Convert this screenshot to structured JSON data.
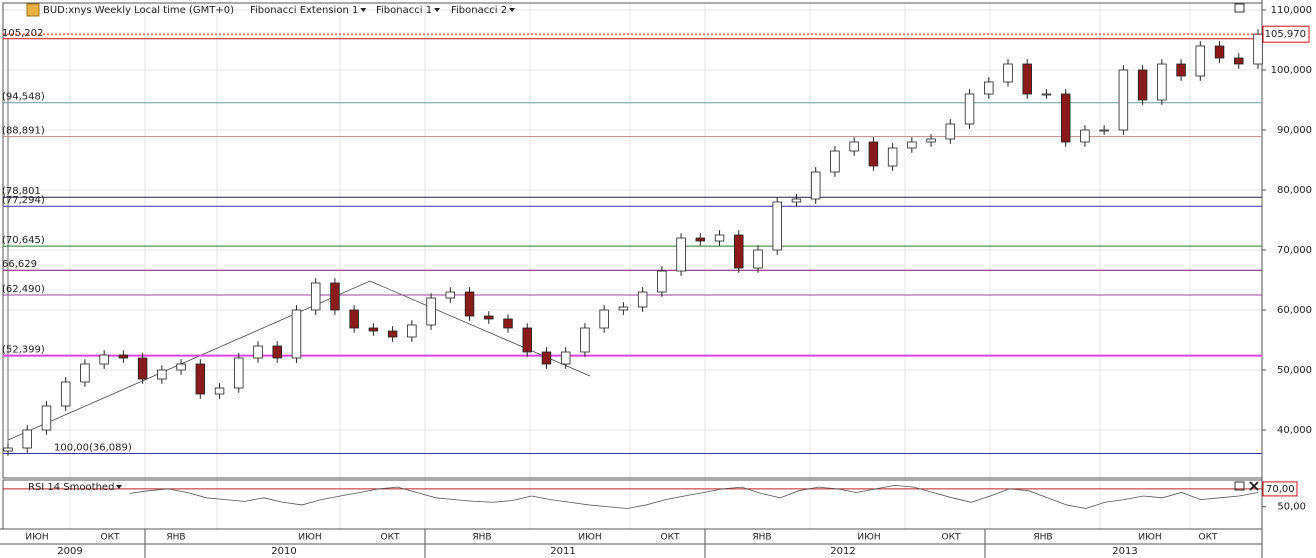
{
  "chart_data": {
    "type": "candlestick",
    "title": "BUD:xnys Weekly Local time (GMT+0)",
    "menus": [
      "Fibonacci Extension 1",
      "Fibonacci 1",
      "Fibonacci 2"
    ],
    "open": [
      36500,
      37000,
      40000,
      44000,
      48000,
      51000,
      52500,
      52000,
      48500,
      50000,
      51000,
      46000,
      47000,
      52000,
      54000,
      52000,
      60000,
      64500,
      60000,
      57000,
      56500,
      55500,
      57500,
      62000,
      63000,
      59000,
      58500,
      57000,
      53000,
      51000,
      53000,
      57000,
      60000,
      60500,
      63000,
      66500,
      72000,
      71500,
      72500,
      67000,
      70000,
      78000,
      78500,
      83000,
      86500,
      88000,
      84000,
      87000,
      88000,
      88500,
      91000,
      96000,
      98000,
      101000,
      96000,
      96000,
      88000,
      90000,
      90000,
      100000,
      95000,
      101000,
      99000,
      104000,
      102000,
      101000
    ],
    "high": [
      37800,
      40800,
      44800,
      48800,
      51800,
      53300,
      53300,
      52800,
      50800,
      51800,
      51800,
      47800,
      52800,
      54800,
      54800,
      60800,
      65300,
      65300,
      60800,
      57800,
      57300,
      58300,
      62800,
      63800,
      63800,
      59800,
      59300,
      57800,
      53800,
      53800,
      57800,
      60800,
      61300,
      63800,
      67300,
      72800,
      72800,
      73300,
      73300,
      70800,
      78800,
      79300,
      83800,
      87300,
      88800,
      88800,
      87800,
      88800,
      89300,
      91800,
      96800,
      98800,
      101800,
      101800,
      96800,
      96800,
      90800,
      90800,
      100800,
      100800,
      101800,
      101800,
      104800,
      104800,
      102800,
      106770
    ],
    "low": [
      35700,
      36200,
      39200,
      43200,
      47200,
      50200,
      51200,
      47700,
      47700,
      49200,
      45200,
      45200,
      46200,
      51200,
      51200,
      51200,
      59200,
      59200,
      56200,
      55700,
      54700,
      54700,
      56700,
      61200,
      58200,
      57700,
      56200,
      52200,
      50200,
      50200,
      52200,
      56200,
      59200,
      59700,
      62200,
      65700,
      70700,
      70700,
      66200,
      66200,
      69200,
      77200,
      77700,
      82200,
      85700,
      83200,
      83200,
      86200,
      87200,
      87700,
      90200,
      95200,
      97200,
      95200,
      95200,
      87200,
      87200,
      89200,
      89200,
      94200,
      94200,
      98200,
      98200,
      101200,
      100200,
      100200
    ],
    "close": [
      37000,
      40000,
      44000,
      48000,
      51000,
      52500,
      52000,
      48500,
      50000,
      51000,
      46000,
      47000,
      52000,
      54000,
      52000,
      60000,
      64500,
      60000,
      57000,
      56500,
      55500,
      57500,
      62000,
      63000,
      59000,
      58500,
      57000,
      53000,
      51000,
      53000,
      57000,
      60000,
      60500,
      63000,
      66500,
      72000,
      71500,
      72500,
      67000,
      70000,
      78000,
      78500,
      83000,
      86500,
      88000,
      84000,
      87000,
      88000,
      88500,
      91000,
      96000,
      98000,
      101000,
      96000,
      96000,
      88000,
      90000,
      90000,
      100000,
      95000,
      101000,
      99000,
      104000,
      102000,
      101000,
      105970
    ],
    "bull_color": "#ffffff",
    "bear_color": "#8b1a1a",
    "last_price": {
      "value": 105970,
      "label": "105,970"
    },
    "ylim": [
      32000,
      111667
    ],
    "yticks": [
      {
        "value": 40000,
        "label": "40,000"
      },
      {
        "value": 50000,
        "label": "50,000"
      },
      {
        "value": 60000,
        "label": "60,000"
      },
      {
        "value": 70000,
        "label": "70,000"
      },
      {
        "value": 80000,
        "label": "80,000"
      },
      {
        "value": 90000,
        "label": "90,000"
      },
      {
        "value": 100000,
        "label": "100,000"
      },
      {
        "value": 110000,
        "label": "110,000"
      }
    ],
    "levels": [
      {
        "value": 105202,
        "label": "105,202",
        "color": "#d01010"
      },
      {
        "value": 94548,
        "label": "(94,548)",
        "color": "#6a9a9a"
      },
      {
        "value": 88891,
        "label": "(88,891)",
        "color": "#c08a8a"
      },
      {
        "value": 78801,
        "label": "(78,801",
        "color": "#222244"
      },
      {
        "value": 77294,
        "label": "(77,294)",
        "color": "#3333aa"
      },
      {
        "value": 70645,
        "label": "(70,645)",
        "color": "#2a7a2a"
      },
      {
        "value": 66629,
        "label": "66,629",
        "color": "#7a1a6a"
      },
      {
        "value": 62490,
        "label": "(62,490)",
        "color": "#a040a0"
      },
      {
        "value": 52399,
        "label": "(52,399)",
        "color": "#e040e0"
      },
      {
        "value": 36089,
        "label": "100,00(36,089)",
        "color": "#3333aa"
      }
    ],
    "rsi": {
      "name": "RSI 14 Smoothed",
      "ylim": [
        25,
        80
      ],
      "level": {
        "value": 70,
        "label": "70,00"
      },
      "yticks": [
        {
          "value": 50,
          "label": "50,00"
        }
      ],
      "values": [
        65,
        68,
        70,
        66,
        60,
        58,
        56,
        60,
        55,
        52,
        58,
        62,
        66,
        70,
        72,
        66,
        60,
        58,
        56,
        55,
        57,
        62,
        58,
        55,
        52,
        50,
        48,
        52,
        58,
        62,
        66,
        70,
        72,
        65,
        60,
        68,
        72,
        70,
        66,
        70,
        74,
        72,
        66,
        60,
        55,
        62,
        70,
        68,
        60,
        52,
        48,
        55,
        58,
        62,
        60,
        66,
        58,
        60,
        62,
        66
      ]
    },
    "months": [
      "ИЮН",
      "ОКТ",
      "ЯНВ",
      "ИЮН",
      "ОКТ",
      "ЯНВ",
      "ИЮН",
      "ОКТ",
      "ЯНВ",
      "ИЮН",
      "ОКТ",
      "ЯНВ",
      "ИЮН",
      "ОКТ"
    ],
    "years": [
      "2009",
      "2010",
      "2011",
      "2012",
      "2013"
    ]
  }
}
